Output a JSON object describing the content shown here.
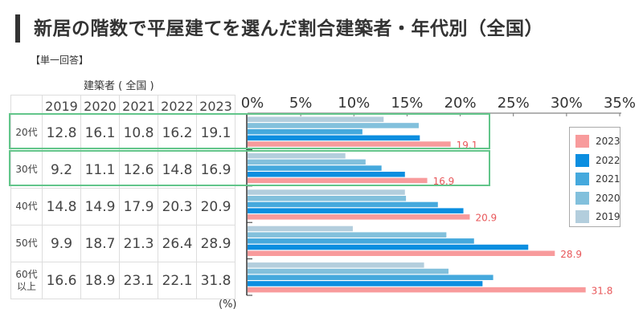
{
  "title": "新居の階数で平屋建てを選んだ割合建築者・年代別（全国）",
  "subtitle": "【単一回答】",
  "table": {
    "caption": "建築者 ( 全国 )",
    "unit": "(%)",
    "columns": [
      "2019",
      "2020",
      "2021",
      "2022",
      "2023"
    ],
    "rows": [
      {
        "label": "20代",
        "values": [
          "12.8",
          "16.1",
          "10.8",
          "16.2",
          "19.1"
        ],
        "highlighted": true
      },
      {
        "label": "30代",
        "values": [
          "9.2",
          "11.1",
          "12.6",
          "14.8",
          "16.9"
        ],
        "highlighted": true
      },
      {
        "label": "40代",
        "values": [
          "14.8",
          "14.9",
          "17.9",
          "20.3",
          "20.9"
        ],
        "highlighted": false
      },
      {
        "label": "50代",
        "values": [
          "9.9",
          "18.7",
          "21.3",
          "26.4",
          "28.9"
        ],
        "highlighted": false
      },
      {
        "label": "60代以上",
        "values": [
          "16.6",
          "18.9",
          "23.1",
          "22.1",
          "31.8"
        ],
        "highlighted": false
      }
    ]
  },
  "colors": {
    "2019": "#b3cedd",
    "2020": "#82c0dc",
    "2021": "#45a9dd",
    "2022": "#0b8ee0",
    "2023": "#f89b9c",
    "label_2023": "#e8575a",
    "highlight": "#62c58a",
    "axis": "#333333"
  },
  "chart_data": {
    "type": "bar",
    "orientation": "horizontal",
    "title": "新居の階数で平屋建てを選んだ割合建築者・年代別（全国）",
    "xlabel": "",
    "ylabel": "",
    "xlim": [
      0,
      35
    ],
    "x_ticks": [
      "0%",
      "5%",
      "10%",
      "15%",
      "20%",
      "25%",
      "30%",
      "35%"
    ],
    "x_tick_values": [
      0,
      5,
      10,
      15,
      20,
      25,
      30,
      35
    ],
    "categories": [
      "20代",
      "30代",
      "40代",
      "50代",
      "60代以上"
    ],
    "series": [
      {
        "name": "2019",
        "values": [
          12.8,
          9.2,
          14.8,
          9.9,
          16.6
        ]
      },
      {
        "name": "2020",
        "values": [
          16.1,
          11.1,
          14.9,
          18.7,
          18.9
        ]
      },
      {
        "name": "2021",
        "values": [
          10.8,
          12.6,
          17.9,
          21.3,
          23.1
        ]
      },
      {
        "name": "2022",
        "values": [
          16.2,
          14.8,
          20.3,
          26.4,
          22.1
        ]
      },
      {
        "name": "2023",
        "values": [
          19.1,
          16.9,
          20.9,
          28.9,
          31.8
        ]
      }
    ],
    "data_labels": {
      "series": "2023",
      "labels": [
        "19.1",
        "16.9",
        "20.9",
        "28.9",
        "31.8"
      ]
    },
    "legend": {
      "placement": "right",
      "entries": [
        "2023",
        "2022",
        "2021",
        "2020",
        "2019"
      ]
    },
    "grid": false
  }
}
